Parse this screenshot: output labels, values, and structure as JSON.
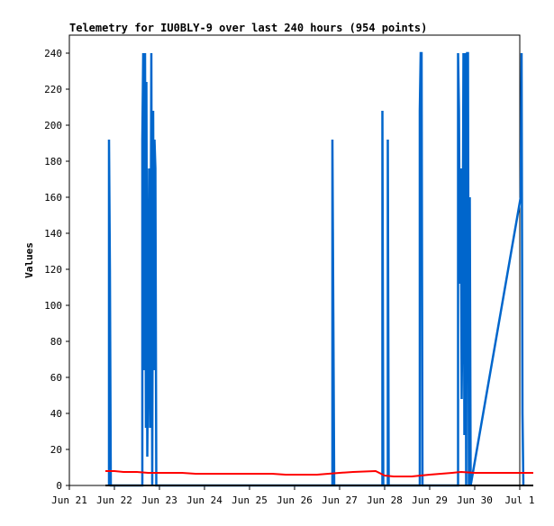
{
  "chart_data": {
    "type": "line",
    "title": "Telemetry for IU0BLY-9 over last 240 hours (954 points)",
    "xlabel": "",
    "ylabel": "Values",
    "xlim": [
      0,
      10
    ],
    "ylim": [
      0,
      250
    ],
    "x_ticks": [
      {
        "x": 0,
        "label": "Jun 21"
      },
      {
        "x": 1,
        "label": "Jun 22"
      },
      {
        "x": 2,
        "label": "Jun 23"
      },
      {
        "x": 3,
        "label": "Jun 24"
      },
      {
        "x": 4,
        "label": "Jun 25"
      },
      {
        "x": 5,
        "label": "Jun 26"
      },
      {
        "x": 6,
        "label": "Jun 27"
      },
      {
        "x": 7,
        "label": "Jun 28"
      },
      {
        "x": 8,
        "label": "Jun 29"
      },
      {
        "x": 9,
        "label": "Jun 30"
      },
      {
        "x": 10,
        "label": "Jul 1"
      }
    ],
    "y_ticks": [
      0,
      20,
      40,
      60,
      80,
      100,
      120,
      140,
      160,
      180,
      200,
      220,
      240
    ],
    "grid": false,
    "series": [
      {
        "color": "#0066cc",
        "points": [
          [
            0.88,
            0
          ],
          [
            0.88,
            192
          ],
          [
            0.9,
            120
          ],
          [
            0.92,
            0
          ],
          [
            1.62,
            0
          ],
          [
            1.62,
            192
          ],
          [
            1.64,
            240
          ],
          [
            1.66,
            64
          ],
          [
            1.68,
            240
          ],
          [
            1.7,
            32
          ],
          [
            1.71,
            224
          ],
          [
            1.73,
            16
          ],
          [
            1.75,
            80
          ],
          [
            1.77,
            176
          ],
          [
            1.79,
            32
          ],
          [
            1.8,
            80
          ],
          [
            1.82,
            240
          ],
          [
            1.84,
            0
          ],
          [
            1.86,
            208
          ],
          [
            1.88,
            64
          ],
          [
            1.89,
            192
          ],
          [
            1.91,
            176
          ],
          [
            1.93,
            0
          ],
          [
            5.84,
            0
          ],
          [
            5.84,
            192
          ],
          [
            5.86,
            96
          ],
          [
            5.88,
            0
          ],
          [
            6.95,
            0
          ],
          [
            6.95,
            208
          ],
          [
            6.97,
            0
          ],
          [
            7.07,
            0
          ],
          [
            7.07,
            192
          ],
          [
            7.09,
            0
          ],
          [
            7.78,
            0
          ],
          [
            7.78,
            208
          ],
          [
            7.8,
            240
          ],
          [
            7.82,
            240
          ],
          [
            7.84,
            0
          ],
          [
            8.63,
            0
          ],
          [
            8.63,
            240
          ],
          [
            8.65,
            208
          ],
          [
            8.67,
            112
          ],
          [
            8.69,
            176
          ],
          [
            8.71,
            48
          ],
          [
            8.73,
            112
          ],
          [
            8.75,
            240
          ],
          [
            8.77,
            28
          ],
          [
            8.79,
            240
          ],
          [
            8.81,
            0
          ],
          [
            8.83,
            240
          ],
          [
            8.85,
            240
          ],
          [
            8.87,
            0
          ],
          [
            8.89,
            160
          ],
          [
            8.91,
            0
          ],
          [
            10.02,
            160
          ],
          [
            10.04,
            240
          ],
          [
            10.06,
            40
          ],
          [
            10.08,
            0
          ]
        ]
      },
      {
        "color": "#ff0000",
        "points": [
          [
            0.8,
            8
          ],
          [
            1.0,
            8
          ],
          [
            1.2,
            7.5
          ],
          [
            1.5,
            7.5
          ],
          [
            1.75,
            7
          ],
          [
            2.0,
            7
          ],
          [
            2.5,
            7
          ],
          [
            2.8,
            6.5
          ],
          [
            3.5,
            6.5
          ],
          [
            4.5,
            6.5
          ],
          [
            4.8,
            6
          ],
          [
            5.5,
            6
          ],
          [
            6.0,
            7
          ],
          [
            6.3,
            7.5
          ],
          [
            6.8,
            8
          ],
          [
            7.0,
            5.5
          ],
          [
            7.2,
            5
          ],
          [
            7.6,
            5
          ],
          [
            8.0,
            6
          ],
          [
            8.5,
            7
          ],
          [
            8.7,
            7.5
          ],
          [
            9.0,
            7
          ],
          [
            10.3,
            7
          ]
        ]
      },
      {
        "color": "#000000",
        "points": [
          [
            0.8,
            0
          ],
          [
            10.3,
            0
          ]
        ]
      }
    ]
  }
}
